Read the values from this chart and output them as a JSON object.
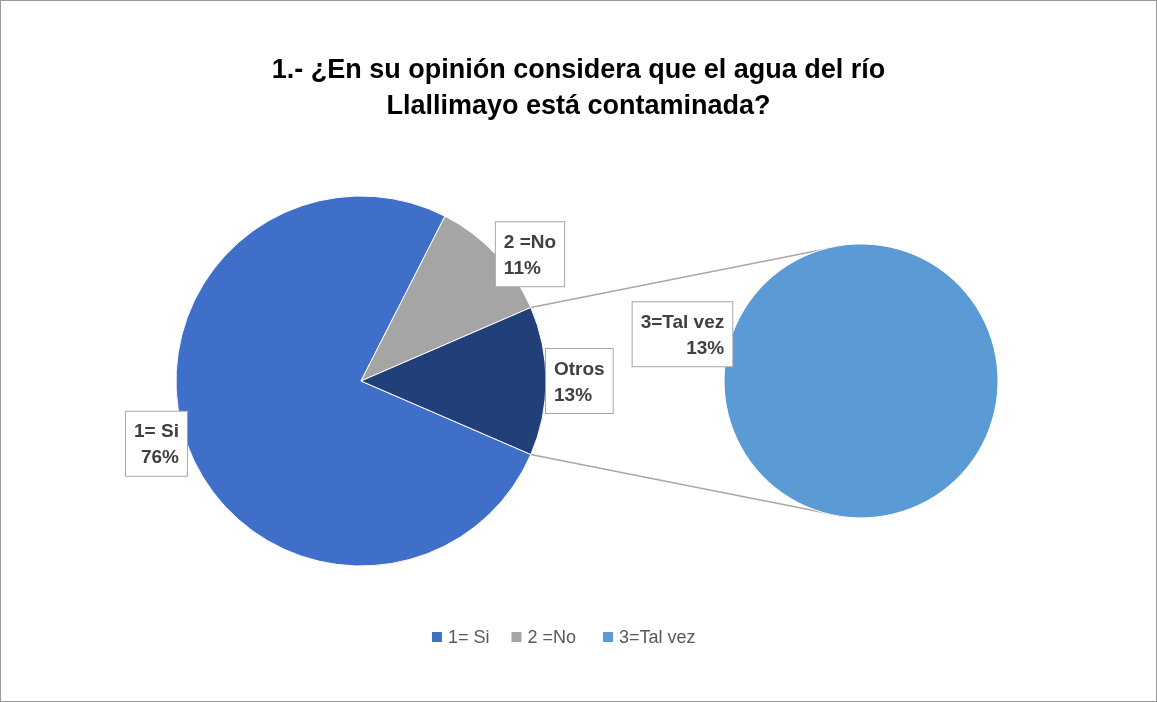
{
  "chart_data": [
    {
      "type": "pie",
      "title": "1.- ¿En su opinión considera que el agua del río\nLlallimayo está contaminada?",
      "categories": [
        "1= Si",
        "2 =No",
        "Otros"
      ],
      "values": [
        76,
        11,
        13
      ],
      "colors": [
        "#3f6fc8",
        "#a5a5a5",
        "#213f78"
      ],
      "value_labels": [
        "76%",
        "11%",
        "13%"
      ],
      "legend": "bottom"
    },
    {
      "type": "pie",
      "categories": [
        "3=Tal vez"
      ],
      "values": [
        13
      ],
      "colors": [
        "#5b9bd5"
      ],
      "value_labels": [
        "13%"
      ],
      "legend": "bottom"
    }
  ]
}
